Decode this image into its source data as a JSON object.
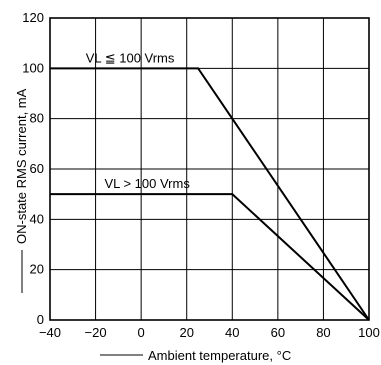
{
  "chart_data": {
    "type": "line",
    "title": "",
    "xlabel": "Ambient temperature, °C",
    "ylabel": "ON-state RMS current, mA",
    "xlim": [
      -40,
      100
    ],
    "ylim": [
      0,
      120
    ],
    "x_ticks": [
      -40,
      -20,
      0,
      20,
      40,
      60,
      80,
      100
    ],
    "y_ticks": [
      0,
      20,
      40,
      60,
      80,
      100,
      120
    ],
    "x_tick_labels": [
      "−40",
      "−20",
      "0",
      "20",
      "40",
      "60",
      "80",
      "100"
    ],
    "y_tick_labels": [
      "0",
      "20",
      "40",
      "60",
      "80",
      "100",
      "120"
    ],
    "grid": true,
    "series": [
      {
        "name": "VL ≦ 100 Vrms",
        "x": [
          -40,
          25,
          100
        ],
        "y": [
          100,
          100,
          0
        ]
      },
      {
        "name": "VL > 100 Vrms",
        "x": [
          -40,
          40,
          100
        ],
        "y": [
          50,
          50,
          0
        ]
      }
    ],
    "line_color": "#000000"
  }
}
